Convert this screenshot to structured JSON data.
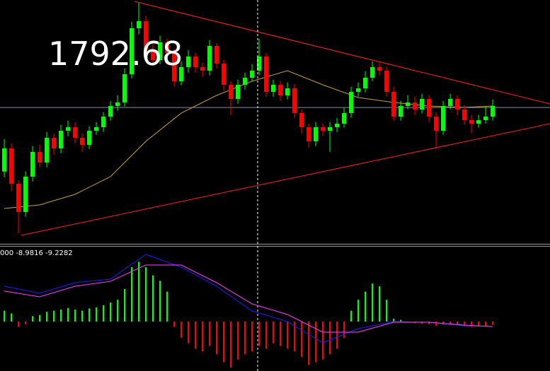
{
  "chart_data": [
    {
      "type": "candlestick",
      "price_label": "1792.68",
      "ylim": [
        1744.45,
        1830.7
      ],
      "up_color": "#00ff00",
      "down_color": "#ff0000",
      "open": [
        1770.0,
        1778.2,
        1765.7,
        1755.7,
        1768.2,
        1776.95,
        1773.2,
        1781.95,
        1778.2,
        1784.45,
        1785.7,
        1781.95,
        1779.45,
        1784.45,
        1785.7,
        1789.45,
        1793.2,
        1794.45,
        1804.45,
        1820.7,
        1823.2,
        1813.2,
        1809.45,
        1815.7,
        1811.95,
        1801.95,
        1806.95,
        1810.7,
        1806.95,
        1805.7,
        1814.45,
        1808.2,
        1800.7,
        1795.7,
        1800.7,
        1803.2,
        1805.7,
        1810.7,
        1798.2,
        1800.7,
        1796.95,
        1799.45,
        1790.7,
        1785.7,
        1780.7,
        1785.7,
        1784.45,
        1785.7,
        1786.95,
        1790.7,
        1798.2,
        1799.45,
        1803.2,
        1806.95,
        1805.7,
        1798.2,
        1789.45,
        1793.2,
        1794.45,
        1791.95,
        1795.7,
        1789.45,
        1784.45,
        1793.2,
        1795.7,
        1791.95,
        1788.2,
        1786.95,
        1788.2,
        1789.45
      ],
      "high": [
        1781.5,
        1780.0,
        1767.0,
        1770.0,
        1779.0,
        1779.5,
        1784.0,
        1783.5,
        1786.5,
        1788.0,
        1787.5,
        1783.5,
        1786.0,
        1787.5,
        1791.0,
        1795.0,
        1797.0,
        1806.5,
        1823.0,
        1829.9,
        1825.0,
        1815.0,
        1818.0,
        1817.0,
        1813.5,
        1809.0,
        1813.0,
        1812.0,
        1808.5,
        1816.5,
        1815.5,
        1809.5,
        1802.0,
        1802.5,
        1805.0,
        1808.0,
        1817.0,
        1812.0,
        1802.5,
        1802.0,
        1801.5,
        1801.0,
        1792.0,
        1787.0,
        1787.5,
        1787.0,
        1787.5,
        1789.0,
        1792.5,
        1800.0,
        1801.5,
        1805.5,
        1809.0,
        1808.5,
        1807.0,
        1800.0,
        1795.0,
        1797.0,
        1796.5,
        1797.5,
        1797.0,
        1791.0,
        1795.0,
        1797.5,
        1797.0,
        1793.5,
        1790.0,
        1790.0,
        1793.0,
        1795.5
      ],
      "low": [
        1768.0,
        1763.0,
        1748.2,
        1754.0,
        1766.5,
        1771.5,
        1771.5,
        1776.0,
        1776.5,
        1782.5,
        1780.0,
        1777.0,
        1778.0,
        1783.0,
        1784.0,
        1788.0,
        1791.5,
        1793.0,
        1803.0,
        1818.5,
        1811.5,
        1807.5,
        1808.0,
        1810.0,
        1800.0,
        1800.5,
        1805.0,
        1805.0,
        1803.5,
        1804.0,
        1806.5,
        1798.5,
        1790.0,
        1794.0,
        1799.0,
        1802.0,
        1804.0,
        1796.5,
        1796.5,
        1795.0,
        1795.5,
        1789.0,
        1783.5,
        1778.5,
        1779.0,
        1782.5,
        1777.0,
        1784.0,
        1785.5,
        1789.0,
        1796.5,
        1798.0,
        1802.0,
        1804.0,
        1796.5,
        1788.0,
        1788.0,
        1792.0,
        1790.0,
        1790.5,
        1787.5,
        1778.0,
        1783.0,
        1792.0,
        1790.0,
        1786.5,
        1783.5,
        1785.5,
        1787.0,
        1788.0
      ],
      "close": [
        1778.2,
        1765.7,
        1755.7,
        1768.2,
        1776.95,
        1773.2,
        1781.95,
        1778.2,
        1784.45,
        1785.7,
        1781.95,
        1779.45,
        1784.45,
        1785.7,
        1789.45,
        1793.2,
        1794.45,
        1804.45,
        1820.7,
        1823.2,
        1813.2,
        1809.45,
        1815.7,
        1811.95,
        1801.95,
        1806.95,
        1810.7,
        1806.95,
        1805.7,
        1814.45,
        1808.2,
        1800.7,
        1795.7,
        1800.7,
        1803.2,
        1805.7,
        1810.7,
        1798.2,
        1800.7,
        1796.95,
        1799.45,
        1790.7,
        1785.7,
        1780.7,
        1785.7,
        1784.45,
        1785.7,
        1786.95,
        1790.7,
        1798.2,
        1799.45,
        1803.2,
        1806.95,
        1805.7,
        1798.2,
        1789.45,
        1793.2,
        1794.45,
        1791.95,
        1795.7,
        1789.45,
        1784.45,
        1793.2,
        1795.7,
        1791.95,
        1788.2,
        1786.95,
        1788.2,
        1789.45,
        1793.2
      ],
      "ma": {
        "color": "#c8a040",
        "x": [
          0,
          5,
          10,
          15,
          20,
          25,
          30,
          35,
          40,
          45,
          50,
          55,
          60,
          65,
          69
        ],
        "values": [
          1756.95,
          1758.2,
          1761.95,
          1768.2,
          1780.7,
          1790.7,
          1796.95,
          1801.95,
          1805.7,
          1800.7,
          1796.2,
          1794.45,
          1793.2,
          1792.7,
          1793.2
        ]
      },
      "hline": {
        "value": 1792.68,
        "color": "#7c8cb0"
      },
      "trendlines": {
        "color": "#ff2020",
        "lines": [
          {
            "x": [
              18.4,
              77.1
            ],
            "values": [
              1830.2,
              1793.95
            ]
          },
          {
            "x": [
              2.4,
              77.1
            ],
            "values": [
              1747.45,
              1786.95
            ]
          }
        ]
      },
      "crosshair_x": 35.8
    },
    {
      "type": "macd",
      "label": "000 -8.9816 -9.2282",
      "ylim": [
        -91,
        136.5
      ],
      "up_color": "#00ff00",
      "down_color": "#ff0000",
      "histogram": [
        20,
        15,
        -10,
        -5,
        10,
        12,
        18,
        20,
        22,
        25,
        22,
        20,
        24,
        26,
        30,
        35,
        40,
        60,
        100,
        110,
        100,
        85,
        75,
        55,
        -10,
        -30,
        -40,
        -50,
        -55,
        -45,
        -60,
        -75,
        -85,
        -70,
        -60,
        -55,
        -45,
        -50,
        -40,
        -45,
        -50,
        -55,
        -65,
        -80,
        -75,
        -70,
        -60,
        -50,
        -30,
        20,
        40,
        55,
        70,
        65,
        40,
        5,
        3,
        -2,
        -3,
        -4,
        -5,
        -8,
        -6,
        -5,
        -7,
        -9,
        -10,
        -9,
        -8,
        -6
      ],
      "lines": [
        {
          "color": "#2020ff",
          "x": [
            0,
            5,
            10,
            15,
            20,
            25,
            30,
            35,
            40,
            45,
            50,
            55,
            60,
            65,
            69
          ],
          "values": [
            65,
            52,
            71.5,
            78,
            123.5,
            100,
            65,
            19.5,
            0,
            -39,
            -13,
            0,
            -1.3,
            -7.8,
            -8.9816
          ]
        },
        {
          "color": "#ff40ff",
          "x": [
            0,
            5,
            10,
            15,
            20,
            25,
            30,
            35,
            40,
            45,
            50,
            55,
            60,
            65,
            69
          ],
          "values": [
            56,
            45.5,
            65,
            74,
            104,
            104,
            71.5,
            32.5,
            13,
            -19.5,
            -19.5,
            -1.3,
            -1.3,
            -6.5,
            -9.2282
          ]
        }
      ]
    }
  ]
}
